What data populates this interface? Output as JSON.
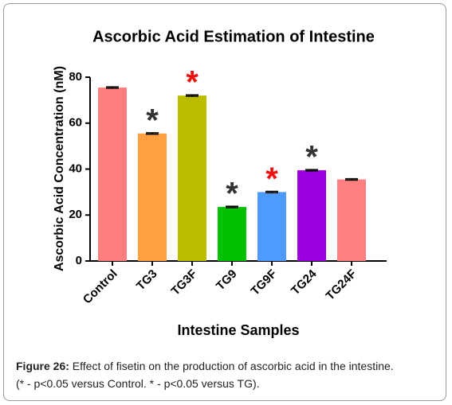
{
  "chart_data": {
    "type": "bar",
    "title": "Ascorbic Acid Estimation of Intestine",
    "x_label": "Intestine Samples",
    "y_label": "Ascorbic Acid Concentration (nM)",
    "categories": [
      "Control",
      "TG3",
      "TG3F",
      "TG9",
      "TG9F",
      "TG24",
      "TG24F"
    ],
    "values": [
      75.5,
      55.5,
      72,
      23.5,
      30,
      39.5,
      35.5
    ],
    "errors": [
      0.3,
      0.3,
      0.3,
      0.3,
      0.3,
      0.3,
      0.3
    ],
    "colors": [
      "#ff7f7f",
      "#ffa040",
      "#bcbc00",
      "#00c000",
      "#4d9bff",
      "#9900dd",
      "#ff8080"
    ],
    "significance": [
      null,
      "*",
      "*",
      "*",
      "*",
      "*",
      null
    ],
    "significance_colors": [
      null,
      "#333333",
      "#ee1111",
      "#333333",
      "#ee1111",
      "#333333",
      null
    ],
    "ylim": [
      0,
      80
    ],
    "yticks": [
      0,
      20,
      40,
      60,
      80
    ],
    "grid": false
  },
  "caption": {
    "label": "Figure 26:",
    "text": "Effect of fisetin on the production of ascorbic acid in the intestine.",
    "note": "(* - p<0.05 versus Control. * - p<0.05 versus TG)."
  }
}
